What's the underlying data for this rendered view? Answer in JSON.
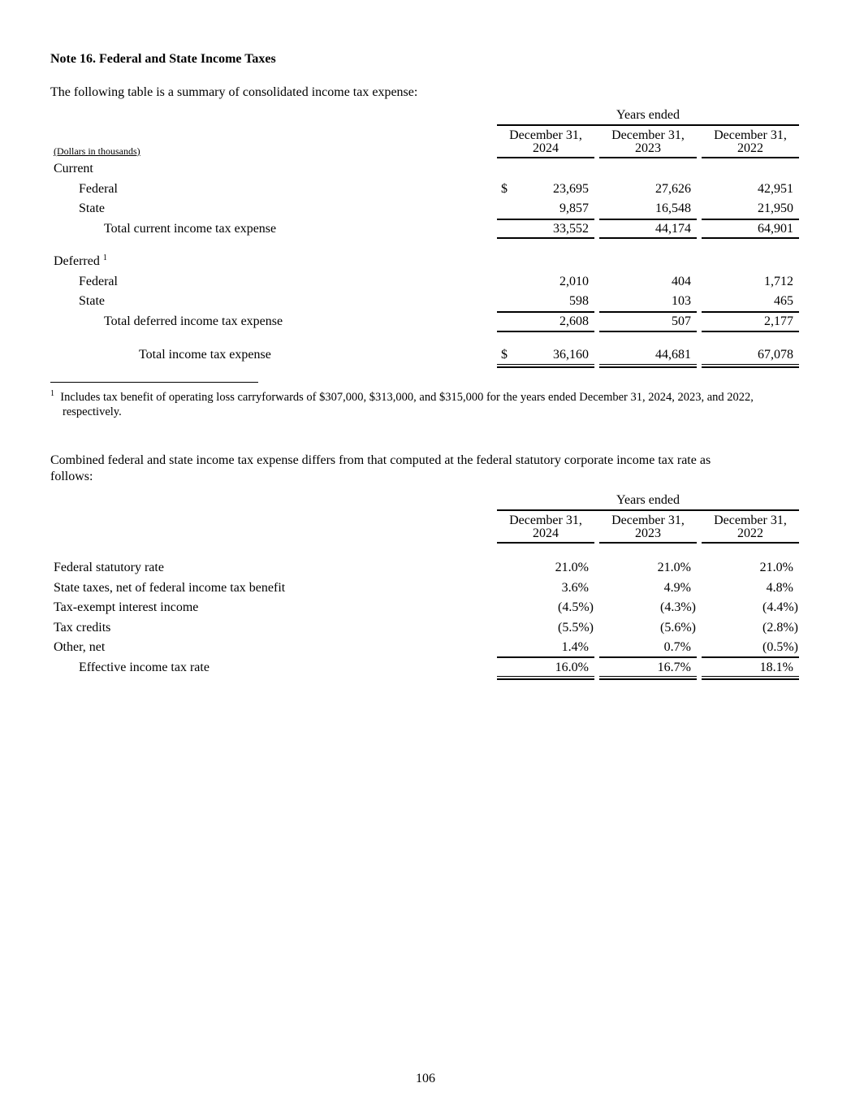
{
  "title": "Note 16.  Federal and State Income Taxes",
  "intro1": "The following table is a summary of consolidated income tax expense:",
  "table1": {
    "group_header": "Years ended",
    "columns": [
      {
        "line1": "December 31,",
        "line2": "2024"
      },
      {
        "line1": "December 31,",
        "line2": "2023"
      },
      {
        "line1": "December 31,",
        "line2": "2022"
      }
    ],
    "units_label": "(Dollars in thousands)",
    "currency_symbol": "$",
    "rows": [
      {
        "label": "Current",
        "indent": 0,
        "values": []
      },
      {
        "label": "Federal",
        "indent": 1,
        "values": [
          "23,695",
          "27,626",
          "42,951"
        ],
        "dollar": true
      },
      {
        "label": "State",
        "indent": 1,
        "values": [
          "9,857",
          "16,548",
          "21,950"
        ]
      },
      {
        "label": "Total current income tax expense",
        "indent": 2,
        "values": [
          "33,552",
          "44,174",
          "64,901"
        ]
      },
      {
        "label": "Deferred",
        "sup": "1",
        "indent": 0,
        "values": []
      },
      {
        "label": "Federal",
        "indent": 1,
        "values": [
          "2,010",
          "404",
          "1,712"
        ]
      },
      {
        "label": "State",
        "indent": 1,
        "values": [
          "598",
          "103",
          "465"
        ]
      },
      {
        "label": "Total deferred income tax expense",
        "indent": 2,
        "values": [
          "2,608",
          "507",
          "2,177"
        ]
      },
      {
        "label": "Total income tax expense",
        "indent": 3,
        "values": [
          "36,160",
          "44,681",
          "67,078"
        ],
        "dollar": true
      }
    ]
  },
  "footnote": {
    "marker": "1",
    "line1": "Includes tax benefit of operating loss carryforwards of $307,000, $313,000, and $315,000 for the years ended December 31, 2024, 2023, and 2022,",
    "line2": "respectively."
  },
  "intro2_line1": "Combined federal and state income tax expense differs from that computed at the federal statutory corporate income tax rate as",
  "intro2_line2": "follows:",
  "table2": {
    "group_header": "Years ended",
    "columns": [
      {
        "line1": "December 31,",
        "line2": "2024"
      },
      {
        "line1": "December 31,",
        "line2": "2023"
      },
      {
        "line1": "December 31,",
        "line2": "2022"
      }
    ],
    "rows": [
      {
        "label": "Federal statutory rate",
        "indent": 0,
        "values": [
          "21.0%",
          "21.0%",
          "21.0%"
        ]
      },
      {
        "label": "State taxes, net of federal income tax benefit",
        "indent": 0,
        "values": [
          "3.6%",
          "4.9%",
          "4.8%"
        ]
      },
      {
        "label": "Tax-exempt interest income",
        "indent": 0,
        "values": [
          "(4.5%)",
          "(4.3%)",
          "(4.4%)"
        ]
      },
      {
        "label": "Tax credits",
        "indent": 0,
        "values": [
          "(5.5%)",
          "(5.6%)",
          "(2.8%)"
        ]
      },
      {
        "label": "Other, net",
        "indent": 0,
        "values": [
          "1.4%",
          "0.7%",
          "(0.5%)"
        ]
      },
      {
        "label": "Effective income tax rate",
        "indent": 1,
        "values": [
          "16.0%",
          "16.7%",
          "18.1%"
        ]
      }
    ]
  },
  "page_number": "106"
}
